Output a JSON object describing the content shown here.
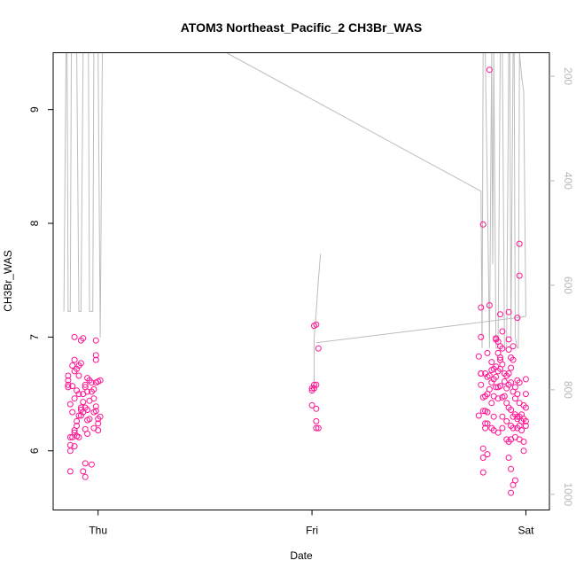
{
  "chart_data": {
    "type": "scatter",
    "title": "ATOM3 Northeast_Pacific_2 CH3Br_WAS",
    "xlabel": "Date",
    "ylabel": "CH3Br_WAS",
    "x_ticks": [
      {
        "label": "Thu",
        "value": 1
      },
      {
        "label": "Fri",
        "value": 2
      },
      {
        "label": "Sat",
        "value": 3
      }
    ],
    "xlim": [
      0.79,
      3.11
    ],
    "ylim": [
      5.48,
      9.5
    ],
    "y_ticks": [
      6,
      7,
      8,
      9
    ],
    "y2_ticks": [
      200,
      400,
      600,
      800,
      1000
    ],
    "y2lim": [
      1030,
      155
    ],
    "grid": false,
    "colors": {
      "points": "#ff1493",
      "profile": "#bdbdbd",
      "y2_axis": "#b8b8b8"
    },
    "series": [
      {
        "points": [
          [
            0.86,
            6.56
          ],
          [
            0.86,
            6.62
          ],
          [
            0.86,
            6.58
          ],
          [
            0.86,
            6.66
          ],
          [
            0.87,
            6.41
          ],
          [
            0.87,
            6.05
          ],
          [
            0.87,
            6.0
          ],
          [
            0.87,
            5.82
          ],
          [
            0.87,
            6.12
          ],
          [
            0.88,
            6.12
          ],
          [
            0.88,
            6.75
          ],
          [
            0.88,
            6.57
          ],
          [
            0.88,
            6.34
          ],
          [
            0.89,
            6.16
          ],
          [
            0.89,
            6.7
          ],
          [
            0.89,
            6.18
          ],
          [
            0.89,
            6.04
          ],
          [
            0.89,
            6.8
          ],
          [
            0.89,
            7.0
          ],
          [
            0.89,
            6.46
          ],
          [
            0.9,
            6.26
          ],
          [
            0.9,
            6.72
          ],
          [
            0.9,
            6.53
          ],
          [
            0.9,
            6.22
          ],
          [
            0.9,
            6.13
          ],
          [
            0.91,
            6.66
          ],
          [
            0.91,
            6.5
          ],
          [
            0.91,
            6.31
          ],
          [
            0.91,
            6.12
          ],
          [
            0.91,
            6.75
          ],
          [
            0.92,
            6.97
          ],
          [
            0.92,
            6.77
          ],
          [
            0.92,
            6.38
          ],
          [
            0.92,
            6.36
          ],
          [
            0.92,
            6.31
          ],
          [
            0.93,
            6.99
          ],
          [
            0.93,
            6.43
          ],
          [
            0.93,
            6.5
          ],
          [
            0.93,
            6.34
          ],
          [
            0.93,
            5.82
          ],
          [
            0.94,
            6.58
          ],
          [
            0.94,
            6.56
          ],
          [
            0.94,
            6.38
          ],
          [
            0.94,
            6.19
          ],
          [
            0.94,
            5.89
          ],
          [
            0.94,
            5.77
          ],
          [
            0.95,
            6.64
          ],
          [
            0.95,
            6.52
          ],
          [
            0.95,
            6.36
          ],
          [
            0.95,
            6.27
          ],
          [
            0.95,
            6.15
          ],
          [
            0.96,
            6.62
          ],
          [
            0.96,
            6.44
          ],
          [
            0.96,
            6.28
          ],
          [
            0.97,
            6.6
          ],
          [
            0.97,
            6.52
          ],
          [
            0.97,
            5.88
          ],
          [
            0.98,
            6.54
          ],
          [
            0.98,
            6.46
          ],
          [
            0.98,
            6.34
          ],
          [
            0.98,
            6.2
          ],
          [
            0.99,
            6.97
          ],
          [
            0.99,
            6.84
          ],
          [
            0.99,
            6.8
          ],
          [
            0.99,
            6.6
          ],
          [
            0.99,
            6.39
          ],
          [
            0.99,
            6.35
          ],
          [
            1.0,
            6.61
          ],
          [
            1.0,
            6.28
          ],
          [
            1.0,
            6.18
          ],
          [
            1.0,
            6.24
          ],
          [
            1.01,
            6.62
          ],
          [
            1.01,
            6.3
          ],
          [
            2.0,
            6.53
          ],
          [
            2.0,
            6.55
          ],
          [
            2.0,
            6.4
          ],
          [
            2.01,
            6.55
          ],
          [
            2.01,
            6.58
          ],
          [
            2.01,
            7.1
          ],
          [
            2.02,
            7.11
          ],
          [
            2.02,
            6.37
          ],
          [
            2.02,
            6.58
          ],
          [
            2.02,
            6.26
          ],
          [
            2.02,
            6.2
          ],
          [
            2.03,
            6.9
          ],
          [
            2.03,
            6.2
          ],
          [
            2.78,
            6.31
          ],
          [
            2.78,
            6.83
          ],
          [
            2.79,
            7.26
          ],
          [
            2.79,
            6.68
          ],
          [
            2.79,
            6.68
          ],
          [
            2.79,
            7.0
          ],
          [
            2.79,
            6.58
          ],
          [
            2.8,
            6.47
          ],
          [
            2.8,
            7.99
          ],
          [
            2.8,
            6.35
          ],
          [
            2.8,
            5.94
          ],
          [
            2.8,
            5.81
          ],
          [
            2.8,
            6.02
          ],
          [
            2.81,
            6.68
          ],
          [
            2.81,
            6.48
          ],
          [
            2.81,
            6.35
          ],
          [
            2.81,
            6.24
          ],
          [
            2.81,
            6.2
          ],
          [
            2.82,
            6.86
          ],
          [
            2.82,
            6.65
          ],
          [
            2.82,
            6.5
          ],
          [
            2.82,
            6.34
          ],
          [
            2.82,
            6.24
          ],
          [
            2.82,
            5.97
          ],
          [
            2.83,
            6.66
          ],
          [
            2.83,
            6.54
          ],
          [
            2.83,
            7.28
          ],
          [
            2.83,
            9.35
          ],
          [
            2.84,
            6.71
          ],
          [
            2.84,
            6.78
          ],
          [
            2.84,
            6.6
          ],
          [
            2.84,
            6.42
          ],
          [
            2.84,
            6.2
          ],
          [
            2.85,
            6.72
          ],
          [
            2.85,
            6.63
          ],
          [
            2.85,
            6.48
          ],
          [
            2.85,
            6.3
          ],
          [
            2.85,
            6.18
          ],
          [
            2.86,
            6.98
          ],
          [
            2.86,
            6.74
          ],
          [
            2.86,
            6.65
          ],
          [
            2.86,
            6.56
          ],
          [
            2.86,
            6.99
          ],
          [
            2.87,
            6.96
          ],
          [
            2.87,
            6.86
          ],
          [
            2.87,
            6.7
          ],
          [
            2.87,
            6.56
          ],
          [
            2.87,
            6.46
          ],
          [
            2.87,
            6.16
          ],
          [
            2.88,
            7.2
          ],
          [
            2.88,
            6.8
          ],
          [
            2.88,
            6.92
          ],
          [
            2.88,
            6.82
          ],
          [
            2.88,
            6.72
          ],
          [
            2.88,
            6.57
          ],
          [
            2.89,
            7.05
          ],
          [
            2.89,
            6.9
          ],
          [
            2.89,
            6.76
          ],
          [
            2.89,
            6.47
          ],
          [
            2.89,
            6.3
          ],
          [
            2.89,
            6.2
          ],
          [
            2.9,
            6.68
          ],
          [
            2.9,
            6.61
          ],
          [
            2.9,
            6.48
          ],
          [
            2.91,
            6.66
          ],
          [
            2.91,
            6.55
          ],
          [
            2.91,
            6.42
          ],
          [
            2.91,
            6.26
          ],
          [
            2.91,
            6.1
          ],
          [
            2.92,
            7.22
          ],
          [
            2.92,
            6.98
          ],
          [
            2.92,
            6.89
          ],
          [
            2.92,
            6.68
          ],
          [
            2.92,
            6.58
          ],
          [
            2.92,
            6.38
          ],
          [
            2.92,
            6.08
          ],
          [
            2.92,
            5.94
          ],
          [
            2.93,
            6.82
          ],
          [
            2.93,
            6.73
          ],
          [
            2.93,
            6.6
          ],
          [
            2.93,
            6.36
          ],
          [
            2.93,
            6.22
          ],
          [
            2.93,
            6.1
          ],
          [
            2.93,
            5.84
          ],
          [
            2.93,
            5.63
          ],
          [
            2.94,
            6.92
          ],
          [
            2.94,
            6.8
          ],
          [
            2.94,
            6.52
          ],
          [
            2.94,
            6.3
          ],
          [
            2.94,
            6.2
          ],
          [
            2.94,
            5.7
          ],
          [
            2.95,
            6.56
          ],
          [
            2.95,
            6.46
          ],
          [
            2.95,
            6.32
          ],
          [
            2.95,
            6.12
          ],
          [
            2.95,
            5.74
          ],
          [
            2.96,
            7.17
          ],
          [
            2.96,
            6.62
          ],
          [
            2.96,
            6.5
          ],
          [
            2.96,
            6.3
          ],
          [
            2.96,
            6.28
          ],
          [
            2.96,
            6.2
          ],
          [
            2.97,
            7.82
          ],
          [
            2.97,
            7.54
          ],
          [
            2.97,
            6.6
          ],
          [
            2.97,
            6.42
          ],
          [
            2.97,
            6.3
          ],
          [
            2.97,
            6.22
          ],
          [
            2.97,
            6.1
          ],
          [
            2.98,
            6.32
          ],
          [
            2.98,
            6.26
          ],
          [
            2.98,
            6.18
          ],
          [
            2.99,
            6.4
          ],
          [
            2.99,
            6.28
          ],
          [
            2.99,
            6.0
          ],
          [
            2.99,
            6.08
          ],
          [
            3.0,
            6.63
          ],
          [
            3.0,
            6.5
          ],
          [
            3.0,
            6.38
          ],
          [
            3.0,
            6.26
          ],
          [
            3.0,
            6.22
          ]
        ]
      }
    ],
    "profile_y2": [
      [
        0.84,
        650
      ],
      [
        0.85,
        150
      ],
      [
        0.855,
        150
      ],
      [
        0.86,
        650
      ],
      [
        0.87,
        650
      ],
      [
        0.875,
        150
      ],
      [
        0.9,
        150
      ],
      [
        0.91,
        650
      ],
      [
        0.92,
        650
      ],
      [
        0.93,
        150
      ],
      [
        0.955,
        150
      ],
      [
        0.96,
        650
      ],
      [
        0.975,
        650
      ],
      [
        0.98,
        150
      ],
      [
        1.0,
        150
      ],
      [
        1.01,
        700
      ],
      [
        1.02,
        150
      ],
      [
        1.05,
        150
      ],
      [
        1.6,
        150
      ],
      [
        2.79,
        420
      ],
      [
        2.795,
        720
      ],
      [
        2.8,
        150
      ],
      [
        2.81,
        150
      ],
      [
        2.82,
        420
      ],
      [
        2.83,
        720
      ],
      [
        2.84,
        150
      ],
      [
        2.845,
        560
      ],
      [
        2.85,
        150
      ],
      [
        2.86,
        720
      ],
      [
        2.87,
        720
      ],
      [
        2.88,
        150
      ],
      [
        2.89,
        150
      ],
      [
        2.9,
        720
      ],
      [
        2.91,
        720
      ],
      [
        2.92,
        150
      ],
      [
        2.925,
        150
      ],
      [
        2.93,
        700
      ],
      [
        2.94,
        150
      ],
      [
        2.945,
        150
      ],
      [
        2.95,
        700
      ],
      [
        2.96,
        720
      ],
      [
        2.965,
        720
      ],
      [
        2.97,
        150
      ],
      [
        2.98,
        200
      ],
      [
        2.99,
        230
      ],
      [
        3.0,
        660
      ]
    ],
    "profile_y2_fri": [
      [
        2.01,
        800
      ],
      [
        2.01,
        700
      ],
      [
        2.02,
        650
      ],
      [
        2.03,
        590
      ],
      [
        2.04,
        540
      ]
    ],
    "profile_y2_connector": [
      [
        2.02,
        710
      ],
      [
        3.0,
        660
      ]
    ]
  }
}
